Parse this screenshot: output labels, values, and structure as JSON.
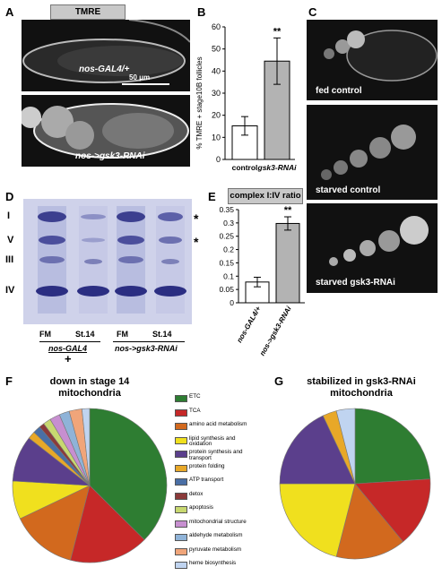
{
  "panels": {
    "A": {
      "letter": "A",
      "badge": "TMRE",
      "scale": "50 μm",
      "top_label": "nos-GAL4/+",
      "bottom_label": "nos->gsk3-RNAi"
    },
    "B": {
      "letter": "B",
      "ylabel": "% TMRE + stage10B follicles",
      "significance": "**"
    },
    "C": {
      "letter": "C",
      "labels": [
        "fed control",
        "starved control",
        "starved gsk3-RNAi"
      ]
    },
    "D": {
      "letter": "D",
      "bands": [
        "I",
        "V",
        "III",
        "IV"
      ],
      "stars": [
        "*",
        "*"
      ],
      "lanes": [
        "FM",
        "St.14",
        "FM",
        "St.14"
      ],
      "group1": "nos-GAL4",
      "group1_sub": "+",
      "group2": "nos->gsk3-RNAi"
    },
    "E": {
      "letter": "E",
      "title": "complex I:IV ratio",
      "significance": "**"
    },
    "F": {
      "letter": "F",
      "title_line1": "down in stage 14",
      "title_line2": "mitochondria"
    },
    "G": {
      "letter": "G",
      "title_line1": "stabilized in gsk3-RNAi",
      "title_line2": "mitochondria"
    }
  },
  "chart_data": [
    {
      "type": "bar",
      "panel": "B",
      "categories": [
        "control",
        "gsk3-RNAi"
      ],
      "values": [
        15.2,
        44.5
      ],
      "errors": [
        4.2,
        10.5
      ],
      "colors": [
        "#ffffff",
        "#b3b3b3"
      ],
      "ylabel": "% TMRE + stage10B follicles",
      "ylim": [
        0,
        60
      ],
      "yticks": [
        "0",
        "10",
        "20",
        "30",
        "40",
        "50",
        "60"
      ]
    },
    {
      "type": "bar",
      "panel": "E",
      "categories": [
        "nos-GAL4/+",
        "nos->gsk3-RNAi"
      ],
      "values": [
        0.078,
        0.298
      ],
      "errors": [
        0.018,
        0.025
      ],
      "colors": [
        "#ffffff",
        "#b3b3b3"
      ],
      "title": "complex I:IV ratio",
      "ylim": [
        0,
        0.35
      ],
      "yticks": [
        "0",
        "0.05",
        "0.1",
        "0.15",
        "0.2",
        "0.25",
        "0.3",
        "0.35"
      ]
    },
    {
      "type": "pie",
      "panel": "F",
      "title": "down in stage 14 mitochondria",
      "labels": [
        "ETC",
        "TCA",
        "amino acid metabolism",
        "lipid synthesis and oxidation",
        "protein synthesis and transport",
        "protein folding",
        "ATP transport",
        "detox",
        "apoptosis",
        "mitochondrial structure",
        "aldehyde metabolism",
        "pyruvate metabolism",
        "heme biosynthesis"
      ],
      "values": [
        35,
        15.5,
        13,
        7.5,
        9,
        1.5,
        1.5,
        1,
        1.5,
        2,
        2,
        2.5,
        1.5
      ],
      "colors": [
        "#2e7d32",
        "#c62828",
        "#d2691e",
        "#f0e01e",
        "#5b3f8c",
        "#e8a828",
        "#4a6fa5",
        "#8b3a3a",
        "#c8d870",
        "#c78fd0",
        "#8fb3d8",
        "#f0a57a",
        "#c0d4f0"
      ]
    },
    {
      "type": "pie",
      "panel": "G",
      "title": "stabilized in gsk3-RNAi mitochondria",
      "labels": [
        "ETC",
        "TCA",
        "amino acid metabolism",
        "lipid synthesis and oxidation",
        "protein synthesis and transport",
        "protein folding",
        "heme biosynthesis"
      ],
      "values": [
        24,
        15,
        15,
        21,
        18,
        3,
        4
      ],
      "colors": [
        "#2e7d32",
        "#c62828",
        "#d2691e",
        "#f0e01e",
        "#5b3f8c",
        "#e8a828",
        "#c0d4f0"
      ]
    }
  ],
  "legend": [
    {
      "label": "ETC",
      "color": "#2e7d32"
    },
    {
      "label": "TCA",
      "color": "#c62828"
    },
    {
      "label": "amino acid metabolism",
      "color": "#d2691e"
    },
    {
      "label": "lipid synthesis and oxidation",
      "color": "#f0e01e"
    },
    {
      "label": "protein synthesis and transport",
      "color": "#5b3f8c"
    },
    {
      "label": "protein folding",
      "color": "#e8a828"
    },
    {
      "label": "ATP transport",
      "color": "#4a6fa5"
    },
    {
      "label": "detox",
      "color": "#8b3a3a"
    },
    {
      "label": "apoptosis",
      "color": "#c8d870"
    },
    {
      "label": "mitochondrial structure",
      "color": "#c78fd0"
    },
    {
      "label": "aldehyde metabolism",
      "color": "#8fb3d8"
    },
    {
      "label": "pyruvate metabolism",
      "color": "#f0a57a"
    },
    {
      "label": "heme biosynthesis",
      "color": "#c0d4f0"
    }
  ]
}
